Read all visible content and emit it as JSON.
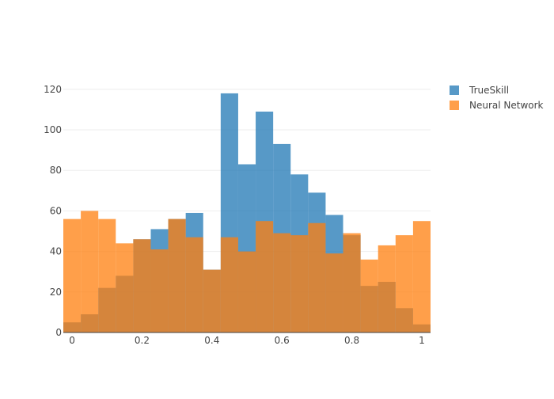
{
  "chart_data": {
    "type": "bar",
    "barmode": "overlay",
    "title": "",
    "xlabel": "",
    "ylabel": "",
    "xlim": [
      -0.025,
      1.025
    ],
    "ylim": [
      0,
      125
    ],
    "grid": true,
    "legend_position": "top-right",
    "bin_width": 0.05,
    "bin_centers": [
      0.0,
      0.05,
      0.1,
      0.15,
      0.2,
      0.25,
      0.3,
      0.35,
      0.4,
      0.45,
      0.5,
      0.55,
      0.6,
      0.65,
      0.7,
      0.75,
      0.8,
      0.85,
      0.9,
      0.95,
      1.0
    ],
    "x_ticks": [
      {
        "value": 0,
        "label": "0"
      },
      {
        "value": 0.2,
        "label": "0.2"
      },
      {
        "value": 0.4,
        "label": "0.4"
      },
      {
        "value": 0.6,
        "label": "0.6"
      },
      {
        "value": 0.8,
        "label": "0.8"
      },
      {
        "value": 1,
        "label": "1"
      }
    ],
    "y_ticks": [
      {
        "value": 0,
        "label": "0"
      },
      {
        "value": 20,
        "label": "20"
      },
      {
        "value": 40,
        "label": "40"
      },
      {
        "value": 60,
        "label": "60"
      },
      {
        "value": 80,
        "label": "80"
      },
      {
        "value": 100,
        "label": "100"
      },
      {
        "value": 120,
        "label": "120"
      }
    ],
    "series": [
      {
        "name": "TrueSkill",
        "color": "#1f77b4",
        "values": [
          5,
          9,
          22,
          28,
          46,
          51,
          56,
          59,
          31,
          118,
          83,
          109,
          93,
          78,
          69,
          58,
          48,
          23,
          25,
          12,
          4
        ]
      },
      {
        "name": "Neural Network",
        "color": "#ff7f0e",
        "values": [
          56,
          60,
          56,
          44,
          46,
          41,
          56,
          47,
          31,
          47,
          40,
          55,
          49,
          48,
          54,
          39,
          49,
          36,
          43,
          48,
          55
        ]
      }
    ]
  }
}
